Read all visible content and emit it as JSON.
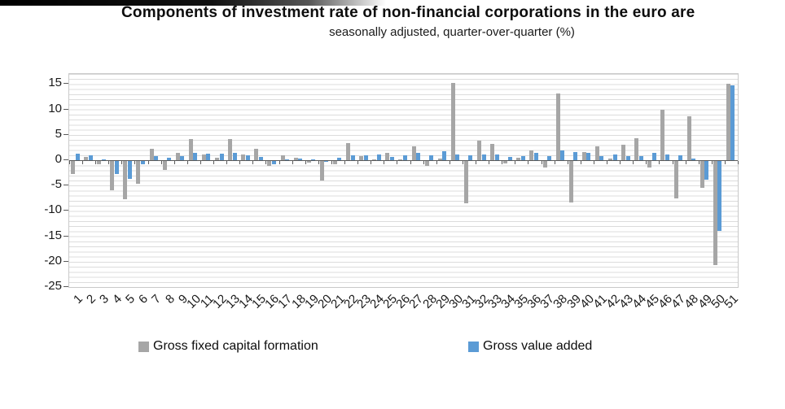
{
  "chart_data": {
    "type": "bar",
    "title": "Components of investment rate of non-financial corporations in the euro are",
    "subtitle": "seasonally adjusted, quarter-over-quarter (%)",
    "categories": [
      "1",
      "2",
      "3",
      "4",
      "5",
      "6",
      "7",
      "8",
      "9",
      "10",
      "11",
      "12",
      "13",
      "14",
      "15",
      "16",
      "17",
      "18",
      "19",
      "20",
      "21",
      "22",
      "23",
      "24",
      "25",
      "26",
      "27",
      "28",
      "29",
      "30",
      "31",
      "32",
      "33",
      "34",
      "35",
      "36",
      "37",
      "38",
      "39",
      "40",
      "41",
      "42",
      "43",
      "44",
      "45",
      "46",
      "47",
      "48",
      "49",
      "50",
      "51"
    ],
    "series": [
      {
        "name": "Gross fixed capital formation",
        "color": "#a6a6a6",
        "values": [
          -2.5,
          0.6,
          -0.6,
          -5.8,
          -7.6,
          -4.5,
          2.2,
          -1.8,
          1.4,
          4.1,
          1.1,
          0.5,
          4.2,
          1.2,
          2.3,
          -1.0,
          0.9,
          0.5,
          -0.3,
          -3.8,
          -0.7,
          3.3,
          0.8,
          0.2,
          1.4,
          0.1,
          2.8,
          -0.9,
          0.3,
          15.2,
          -8.3,
          3.8,
          3.2,
          -0.5,
          0.5,
          1.9,
          -1.2,
          13.2,
          -8.1,
          1.6,
          2.7,
          0.3,
          3.0,
          4.4,
          -1.2,
          10.0,
          -7.3,
          8.7,
          -5.3,
          -20.5,
          15.1
        ]
      },
      {
        "name": "Gross value added",
        "color": "#5b9bd5",
        "values": [
          1.3,
          1.0,
          0.1,
          -2.5,
          -3.5,
          -0.6,
          0.8,
          0.5,
          0.8,
          1.4,
          1.3,
          1.3,
          1.5,
          1.0,
          0.7,
          -0.7,
          0.2,
          0.4,
          0.1,
          -0.2,
          0.5,
          0.9,
          1.0,
          1.1,
          0.6,
          0.9,
          1.4,
          1.0,
          1.7,
          1.1,
          1.0,
          1.2,
          1.2,
          0.7,
          0.8,
          1.5,
          0.8,
          2.0,
          1.6,
          1.4,
          0.8,
          1.1,
          0.8,
          0.8,
          1.4,
          1.1,
          1.0,
          0.3,
          -3.6,
          -13.7,
          14.7
        ]
      }
    ],
    "y_ticks": [
      15,
      10,
      5,
      0,
      -5,
      -10,
      -15,
      -20,
      -25
    ],
    "ylim": [
      -25,
      17
    ],
    "xlabel": "",
    "ylabel": "",
    "grid": "horizontal-minor-every-1",
    "legend_position": "bottom"
  },
  "colors": {
    "bar_gray": "#a6a6a6",
    "bar_blue": "#5b9bd5",
    "gridline": "#dcdcdc",
    "axis_line": "#5a5a5a",
    "text": "#1a1a1a"
  }
}
